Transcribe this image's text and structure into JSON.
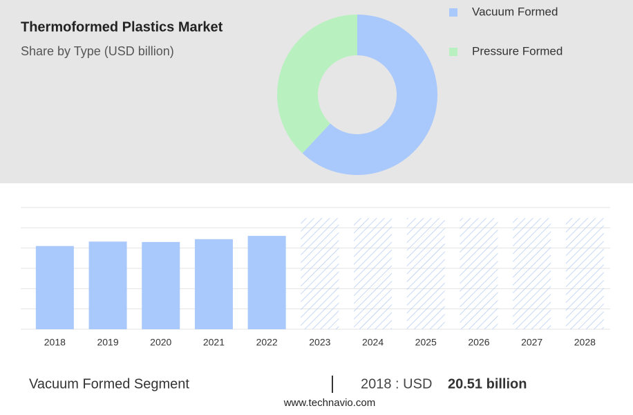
{
  "title": "Thermoformed Plastics Market",
  "subtitle": "Share by Type (USD billion)",
  "donut_chart": {
    "type": "donut",
    "series": [
      {
        "name": "Vacuum Formed",
        "color": "#a9c8fb",
        "value": 62
      },
      {
        "name": "Pressure Formed",
        "color": "#b9f0bf",
        "value": 38
      }
    ]
  },
  "chart_data": {
    "type": "bar",
    "categories": [
      "2018",
      "2019",
      "2020",
      "2021",
      "2022",
      "2023",
      "2024",
      "2025",
      "2026",
      "2027",
      "2028"
    ],
    "values": [
      20.51,
      21.6,
      21.5,
      22.2,
      23.0,
      27.4,
      27.4,
      27.4,
      27.4,
      27.4,
      27.4
    ],
    "hatched": [
      false,
      false,
      false,
      false,
      false,
      true,
      true,
      true,
      true,
      true,
      true
    ],
    "color": "#a9c8fb",
    "ylim": [
      0,
      30
    ],
    "yticks": [
      0,
      5,
      10,
      15,
      20,
      25,
      30
    ],
    "grid": true
  },
  "footer": {
    "segment": "Vacuum Formed Segment",
    "year_label": "2018 : USD",
    "value_label": "20.51 billion",
    "source": "www.technavio.com"
  }
}
